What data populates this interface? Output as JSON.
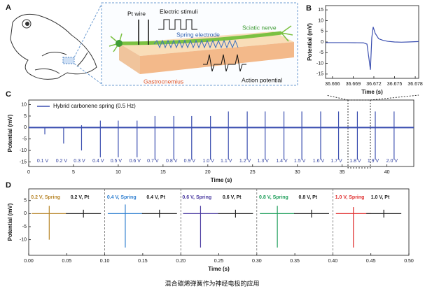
{
  "figure_a": {
    "label": "A",
    "pt_wire": "Pt wire",
    "electric_stimuli": "Electric stimuli",
    "spring_electrode": "Spring electrode",
    "sciatic_nerve": "Sciatic nerve",
    "gastrocnemius": "Gastrocnemius",
    "action_potential": "Action potential"
  },
  "chart_data": [
    {
      "type": "line",
      "panel": "B",
      "x_label": "Time (s)",
      "y_label": "Potential (mV)",
      "xlim": [
        36.665,
        36.6785
      ],
      "ylim": [
        -17,
        17
      ],
      "xticks": [
        36.666,
        36.669,
        36.672,
        36.675,
        36.678
      ],
      "yticks": [
        -15,
        -10,
        -5,
        0,
        5,
        10,
        15
      ],
      "series": [
        {
          "color": "#3b4fb0",
          "x": [
            36.665,
            36.668,
            36.6705,
            36.671,
            36.6713,
            36.6715,
            36.6717,
            36.6719,
            36.6722,
            36.6727,
            36.6733,
            36.674,
            36.675,
            36.676,
            36.677,
            36.6785
          ],
          "values": [
            -0.3,
            -0.3,
            -0.4,
            -1,
            -8,
            -13,
            2,
            7,
            4,
            1.5,
            0.8,
            0.3,
            0,
            -0.1,
            0,
            0.2
          ]
        }
      ]
    },
    {
      "type": "spike",
      "panel": "C",
      "x_label": "Time (s)",
      "y_label": "Potential (mV)",
      "xlim": [
        0,
        43
      ],
      "ylim": [
        -17,
        12
      ],
      "xticks": [
        0,
        5,
        10,
        15,
        20,
        25,
        30,
        35,
        40
      ],
      "yticks": [
        -15,
        -10,
        -5,
        0,
        5,
        10
      ],
      "legend_position": "upper left",
      "series": [
        {
          "name": "Hybrid carbonene spring (0.5 Hz)",
          "color": "#3b4fb0",
          "x": [
            1.8,
            3.9,
            5.9,
            8.0,
            10.0,
            12.1,
            14.1,
            16.2,
            18.2,
            20.3,
            22.3,
            24.4,
            26.4,
            28.5,
            30.5,
            32.6,
            34.6,
            36.7,
            38.7,
            40.8
          ],
          "high": [
            0,
            0,
            1,
            3,
            3,
            3,
            5,
            5,
            5,
            5,
            7,
            7,
            7,
            7,
            7,
            7,
            7,
            7,
            7,
            7
          ],
          "low": [
            -3,
            -7,
            -10,
            -13,
            -13,
            -13,
            -14,
            -14,
            -14,
            -14,
            -14,
            -14,
            -14,
            -14,
            -14,
            -14,
            -14,
            -14,
            -14,
            -14
          ],
          "spike_labels": [
            "0.1 V",
            "0.2 V",
            "0.3 V",
            "0.4 V",
            "0.5 V",
            "0.6 V",
            "0.7 V",
            "0.8 V",
            "0.9 V",
            "1.0 V",
            "1.1 V",
            "1.2 V",
            "1.3 V",
            "1.4 V",
            "1.5 V",
            "1.6 V",
            "1.7 V",
            "1.8 V",
            "1.9 V",
            "2.0 V"
          ]
        }
      ]
    },
    {
      "type": "spike",
      "panel": "D",
      "x_label": "Time (s)",
      "y_label": "Potential (mV)",
      "xlim": [
        0,
        0.5
      ],
      "ylim": [
        -16,
        9.5
      ],
      "xticks": [
        {
          "value": 0,
          "label": "0.00"
        },
        {
          "value": 0.05,
          "label": "0.05"
        },
        {
          "value": 0.1,
          "label": "0.10"
        },
        {
          "value": 0.15,
          "label": "0.15"
        },
        {
          "value": 0.2,
          "label": "0.20"
        },
        {
          "value": 0.25,
          "label": "0.25"
        },
        {
          "value": 0.3,
          "label": "0.30"
        },
        {
          "value": 0.35,
          "label": "0.35"
        },
        {
          "value": 0.4,
          "label": "0.40"
        },
        {
          "value": 0.45,
          "label": "0.45"
        },
        {
          "value": 0.5,
          "label": "0.50"
        }
      ],
      "yticks": [
        -10,
        -5,
        0,
        5
      ],
      "dividers": [
        0.1,
        0.2,
        0.3,
        0.4
      ],
      "series": [
        {
          "name": "0.2 V, Spring",
          "color": "#b8862a",
          "x": [
            0.027
          ],
          "high": [
            3
          ],
          "low": [
            -10
          ]
        },
        {
          "name": "0.2 V, Pt",
          "color": "#222222",
          "x": [
            0.072
          ],
          "high": [
            1.5
          ],
          "low": [
            -1.5
          ]
        },
        {
          "name": "0.4 V, Spring",
          "color": "#2f7fd0",
          "x": [
            0.127
          ],
          "high": [
            3.5
          ],
          "low": [
            -13
          ]
        },
        {
          "name": "0.4 V, Pt",
          "color": "#222222",
          "x": [
            0.172
          ],
          "high": [
            1.5
          ],
          "low": [
            -1.5
          ]
        },
        {
          "name": "0.6 V, Spring",
          "color": "#4a3aa0",
          "x": [
            0.226
          ],
          "high": [
            3
          ],
          "low": [
            -13
          ]
        },
        {
          "name": "0.6 V, Pt",
          "color": "#222222",
          "x": [
            0.272
          ],
          "high": [
            1.5
          ],
          "low": [
            -1.5
          ]
        },
        {
          "name": "0.8 V, Spring",
          "color": "#1e9e5a",
          "x": [
            0.327
          ],
          "high": [
            3
          ],
          "low": [
            -13
          ]
        },
        {
          "name": "0.8 V, Pt",
          "color": "#222222",
          "x": [
            0.372
          ],
          "high": [
            1.5
          ],
          "low": [
            -1.5
          ]
        },
        {
          "name": "1.0 V, Spring",
          "color": "#e03030",
          "x": [
            0.427
          ],
          "high": [
            2.5
          ],
          "low": [
            -13
          ]
        },
        {
          "name": "1.0 V, Pt",
          "color": "#222222",
          "x": [
            0.467
          ],
          "high": [
            1.5
          ],
          "low": [
            -1.5
          ]
        }
      ]
    }
  ],
  "caption": "混合碳烯弹簧作为神经电极的应用"
}
